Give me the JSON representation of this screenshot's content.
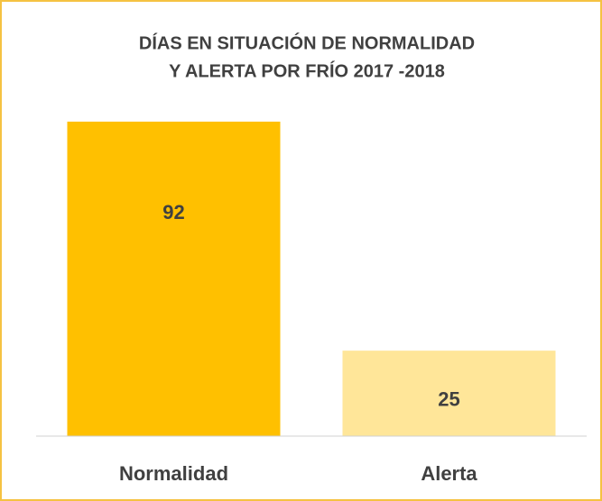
{
  "chart_data": {
    "type": "bar",
    "title": [
      "DÍAS EN SITUACIÓN DE NORMALIDAD",
      "Y ALERTA POR FRÍO 2017 -2018"
    ],
    "categories": [
      "Normalidad",
      "Alerta"
    ],
    "values": [
      92,
      25
    ],
    "colors": [
      "#ffc000",
      "#ffe699"
    ]
  }
}
